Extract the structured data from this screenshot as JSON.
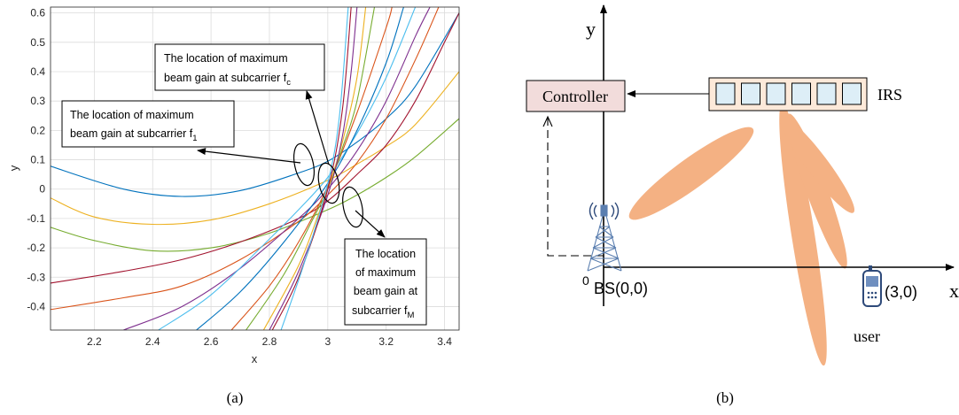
{
  "chart_data": [
    {
      "type": "line",
      "caption": "(a)",
      "xlabel": "x",
      "ylabel": "y",
      "xlim": [
        2.05,
        3.45
      ],
      "ylim": [
        -0.48,
        0.62
      ],
      "xticks": [
        "2.2",
        "2.4",
        "2.6",
        "2.8",
        "3",
        "3.2",
        "3.4"
      ],
      "yticks": [
        "0.6",
        "0.5",
        "0.4",
        "0.3",
        "0.2",
        "0.1",
        "0",
        "-0.1",
        "-0.2",
        "-0.3",
        "-0.4"
      ],
      "grid": true,
      "series": [
        {
          "color": "#0072BD",
          "values": [
            [
              2.05,
              0.078
            ],
            [
              2.3,
              0.0
            ],
            [
              2.5,
              -0.025
            ],
            [
              2.7,
              -0.005
            ],
            [
              2.9,
              0.055
            ],
            [
              3.0,
              0.095
            ],
            [
              3.1,
              0.16
            ],
            [
              3.2,
              0.24
            ],
            [
              3.3,
              0.35
            ],
            [
              3.45,
              0.6
            ]
          ]
        },
        {
          "color": "#EDB120",
          "values": [
            [
              2.05,
              -0.03
            ],
            [
              2.2,
              -0.095
            ],
            [
              2.4,
              -0.12
            ],
            [
              2.6,
              -0.105
            ],
            [
              2.8,
              -0.05
            ],
            [
              3.0,
              0.03
            ],
            [
              3.1,
              0.085
            ],
            [
              3.2,
              0.145
            ],
            [
              3.3,
              0.22
            ],
            [
              3.45,
              0.4
            ]
          ]
        },
        {
          "color": "#77AC30",
          "values": [
            [
              2.05,
              -0.13
            ],
            [
              2.2,
              -0.175
            ],
            [
              2.4,
              -0.21
            ],
            [
              2.6,
              -0.2
            ],
            [
              2.8,
              -0.15
            ],
            [
              3.0,
              -0.07
            ],
            [
              3.1,
              -0.02
            ],
            [
              3.2,
              0.04
            ],
            [
              3.3,
              0.11
            ],
            [
              3.45,
              0.24
            ]
          ]
        },
        {
          "color": "#A2142F",
          "values": [
            [
              2.05,
              -0.32
            ],
            [
              2.3,
              -0.28
            ],
            [
              2.5,
              -0.24
            ],
            [
              2.7,
              -0.18
            ],
            [
              2.9,
              -0.1
            ],
            [
              3.0,
              -0.04
            ],
            [
              3.1,
              0.05
            ],
            [
              3.2,
              0.15
            ],
            [
              3.3,
              0.3
            ],
            [
              3.4,
              0.5
            ],
            [
              3.45,
              0.6
            ]
          ]
        },
        {
          "color": "#D95319",
          "values": [
            [
              2.05,
              -0.41
            ],
            [
              2.3,
              -0.37
            ],
            [
              2.5,
              -0.33
            ],
            [
              2.7,
              -0.24
            ],
            [
              2.9,
              -0.11
            ],
            [
              3.0,
              -0.02
            ],
            [
              3.1,
              0.09
            ],
            [
              3.2,
              0.24
            ],
            [
              3.3,
              0.44
            ],
            [
              3.38,
              0.62
            ]
          ]
        },
        {
          "color": "#7E2F8E",
          "values": [
            [
              2.3,
              -0.48
            ],
            [
              2.5,
              -0.4
            ],
            [
              2.7,
              -0.27
            ],
            [
              2.9,
              -0.1
            ],
            [
              3.0,
              0.0
            ],
            [
              3.1,
              0.13
            ],
            [
              3.2,
              0.3
            ],
            [
              3.3,
              0.52
            ],
            [
              3.35,
              0.62
            ]
          ]
        },
        {
          "color": "#4DBEEE",
          "values": [
            [
              2.42,
              -0.48
            ],
            [
              2.6,
              -0.36
            ],
            [
              2.8,
              -0.17
            ],
            [
              2.9,
              -0.07
            ],
            [
              3.0,
              0.04
            ],
            [
              3.1,
              0.19
            ],
            [
              3.2,
              0.38
            ],
            [
              3.3,
              0.62
            ]
          ]
        },
        {
          "color": "#0072BD",
          "values": [
            [
              2.55,
              -0.48
            ],
            [
              2.7,
              -0.35
            ],
            [
              2.85,
              -0.18
            ],
            [
              3.0,
              0.02
            ],
            [
              3.1,
              0.2
            ],
            [
              3.2,
              0.43
            ],
            [
              3.26,
              0.62
            ]
          ]
        },
        {
          "color": "#D95319",
          "values": [
            [
              2.67,
              -0.48
            ],
            [
              2.8,
              -0.33
            ],
            [
              2.9,
              -0.18
            ],
            [
              3.0,
              0.01
            ],
            [
              3.1,
              0.26
            ],
            [
              3.2,
              0.55
            ],
            [
              3.22,
              0.62
            ]
          ]
        },
        {
          "color": "#77AC30",
          "values": [
            [
              2.72,
              -0.48
            ],
            [
              2.85,
              -0.29
            ],
            [
              2.95,
              -0.1
            ],
            [
              3.0,
              0.0
            ],
            [
              3.05,
              0.14
            ],
            [
              3.1,
              0.3
            ],
            [
              3.16,
              0.62
            ]
          ]
        },
        {
          "color": "#EDB120",
          "values": [
            [
              2.78,
              -0.48
            ],
            [
              2.9,
              -0.26
            ],
            [
              2.97,
              -0.08
            ],
            [
              3.0,
              0.0
            ],
            [
              3.05,
              0.16
            ],
            [
              3.1,
              0.38
            ],
            [
              3.13,
              0.62
            ]
          ]
        },
        {
          "color": "#7E2F8E",
          "values": [
            [
              2.8,
              -0.48
            ],
            [
              2.9,
              -0.28
            ],
            [
              3.0,
              -0.02
            ],
            [
              3.05,
              0.18
            ],
            [
              3.08,
              0.4
            ],
            [
              3.1,
              0.62
            ]
          ]
        },
        {
          "color": "#A2142F",
          "values": [
            [
              2.81,
              -0.48
            ],
            [
              2.9,
              -0.3
            ],
            [
              3.0,
              0.0
            ],
            [
              3.05,
              0.27
            ],
            [
              3.08,
              0.62
            ]
          ]
        },
        {
          "color": "#4DBEEE",
          "values": [
            [
              2.84,
              -0.48
            ],
            [
              2.92,
              -0.25
            ],
            [
              3.0,
              0.02
            ],
            [
              3.04,
              0.25
            ],
            [
              3.07,
              0.62
            ]
          ]
        }
      ],
      "annotations": [
        {
          "lines": [
            "The location of  maximum",
            "beam gain at subcarrier f"
          ],
          "subscript": "1"
        },
        {
          "lines": [
            "The location of  maximum",
            "beam gain at subcarrier f"
          ],
          "subscript": "c"
        },
        {
          "lines": [
            "The location",
            "of  maximum",
            "beam gain at",
            "subcarrier f"
          ],
          "subscript": "M"
        }
      ]
    }
  ],
  "diagram": {
    "caption": "(b)",
    "y_axis_label": "y",
    "x_axis_label": "x",
    "origin_label": "0",
    "controller_label": "Controller",
    "irs_label": "IRS",
    "bs_label": "BS(0,0)",
    "user_coord_label": "(3,0)",
    "user_label": "user",
    "irs_elements": 6,
    "colors": {
      "controller_fill": "#F2DCDB",
      "irs_fill": "#FDE9D9",
      "irs_element_fill": "#DDEEF7",
      "beam_fill": "#F4B183",
      "tower": "#5B7FB0"
    }
  }
}
